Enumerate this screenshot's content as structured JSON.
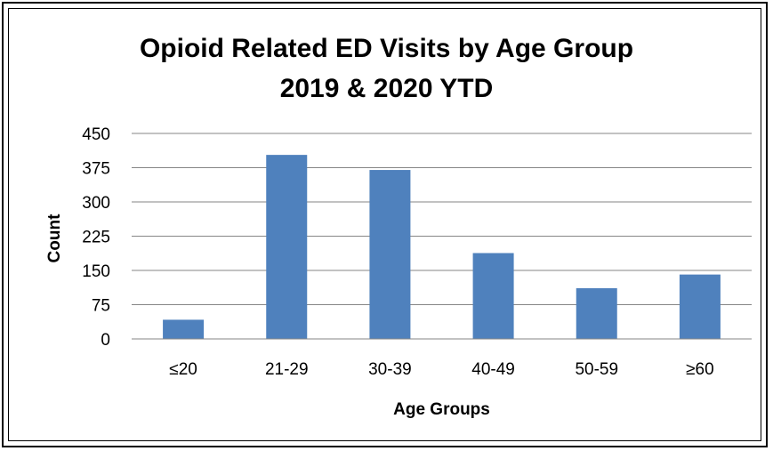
{
  "chart_data": {
    "type": "bar",
    "title_line1": "Opioid Related ED Visits by Age Group",
    "title_line2": "2019 & 2020 YTD",
    "xlabel": "Age Groups",
    "ylabel": "Count",
    "categories": [
      "≤20",
      "21-29",
      "30-39",
      "40-49",
      "50-59",
      "≥60"
    ],
    "values": [
      42,
      403,
      370,
      188,
      111,
      141
    ],
    "ylim": [
      0,
      450
    ],
    "yticks": [
      0,
      75,
      150,
      225,
      300,
      375,
      450
    ],
    "grid": true,
    "legend": "none",
    "bar_color": "#4f81bd",
    "grid_color": "#868686"
  }
}
